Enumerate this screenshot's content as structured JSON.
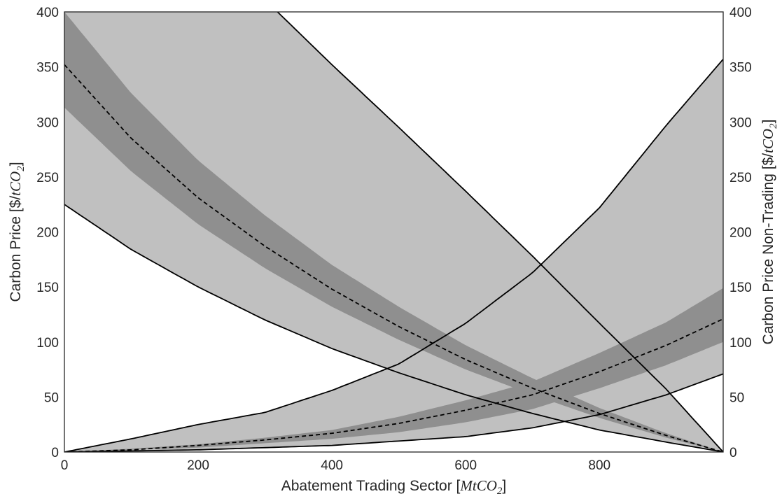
{
  "chart_data": {
    "type": "area",
    "xlabel": {
      "text": "Abatement Trading Sector [",
      "math": "MtCO",
      "sub": "2",
      "close": "]"
    },
    "ylabel_left": {
      "text": "Carbon Price [$/",
      "math": "tCO",
      "sub": "2",
      "close": "]"
    },
    "ylabel_right": {
      "text": "Carbon Price Non-Trading [$/",
      "math": "tCO",
      "sub": "2",
      "close": "]"
    },
    "xlim": [
      0,
      985
    ],
    "ylim": [
      0,
      400
    ],
    "x_ticks": [
      0,
      200,
      400,
      600,
      800
    ],
    "x_tick_labels": [
      "0",
      "200",
      "400",
      "600",
      "800"
    ],
    "y_ticks": [
      0,
      50,
      100,
      150,
      200,
      250,
      300,
      350,
      400
    ],
    "y_tick_labels": [
      "0",
      "50",
      "100",
      "150",
      "200",
      "250",
      "300",
      "350",
      "400"
    ],
    "y2_ticks": [
      0,
      50,
      100,
      150,
      200,
      250,
      300,
      350,
      400
    ],
    "y2_tick_labels": [
      "0",
      "50",
      "100",
      "150",
      "200",
      "250",
      "300",
      "350",
      "400"
    ],
    "grid": false,
    "legend": "none",
    "colors": {
      "outer_band": "#c0c0c0",
      "inner_band": "#8f8f8f",
      "bound_line": "#000000",
      "median_line": "#000000",
      "axis": "#262626"
    },
    "series": [
      {
        "id": "trading",
        "axis": "left",
        "x": [
          0,
          100,
          200,
          300,
          400,
          500,
          600,
          700,
          800,
          900,
          985
        ],
        "upper": [
          600,
          535,
          471,
          411,
          352,
          295,
          237,
          178,
          117,
          57,
          0
        ],
        "inner_upper": [
          400,
          326,
          265,
          215,
          170,
          132,
          97,
          67,
          40,
          17,
          0
        ],
        "median": [
          352,
          285,
          231,
          187,
          148,
          114,
          84,
          58,
          35,
          15,
          0
        ],
        "inner_lower": [
          313,
          255,
          207,
          167,
          132,
          102,
          75,
          52,
          31,
          13,
          0
        ],
        "lower": [
          225,
          184,
          150,
          120,
          94,
          72,
          52,
          35,
          20,
          9,
          0
        ]
      },
      {
        "id": "non_trading",
        "axis": "right",
        "x": [
          0,
          100,
          200,
          300,
          400,
          500,
          600,
          700,
          800,
          900,
          985
        ],
        "upper": [
          0,
          12,
          25,
          36,
          56,
          80,
          117,
          163,
          222,
          297,
          357
        ],
        "inner_upper": [
          0,
          3,
          7,
          13,
          20,
          32,
          47,
          64,
          90,
          118,
          149
        ],
        "median": [
          0,
          2,
          6,
          11,
          17,
          26,
          38,
          52,
          73,
          97,
          121
        ],
        "inner_lower": [
          0,
          2,
          4,
          8,
          12,
          18,
          27,
          39,
          58,
          79,
          100
        ],
        "lower": [
          0,
          1,
          2,
          4,
          6,
          10,
          14,
          22,
          34,
          52,
          71
        ]
      }
    ]
  }
}
